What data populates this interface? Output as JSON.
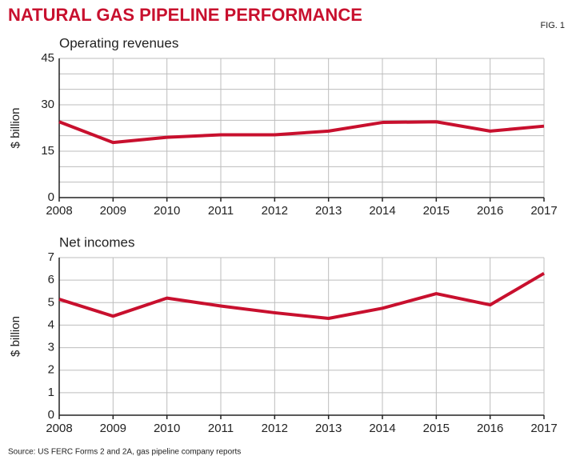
{
  "title": "NATURAL GAS PIPELINE PERFORMANCE",
  "figure_label": "FIG. 1",
  "source": "Source: US FERC Forms 2 and 2A, gas pipeline company reports",
  "chart_data": [
    {
      "type": "line",
      "title": "Operating revenues",
      "y_label": "$ billion",
      "x": [
        2008,
        2009,
        2010,
        2011,
        2012,
        2013,
        2014,
        2015,
        2016,
        2017
      ],
      "values": [
        24.5,
        17.8,
        19.5,
        20.3,
        20.3,
        21.5,
        24.3,
        24.5,
        21.5,
        23.1
      ],
      "color": "#c8102e",
      "xlim": [
        2008,
        2017
      ],
      "xticks": [
        2008,
        2009,
        2010,
        2011,
        2012,
        2013,
        2014,
        2015,
        2016,
        2017
      ],
      "ylim": [
        0,
        45
      ],
      "yticks": [
        0,
        15,
        30,
        45
      ],
      "minor_yticks": [
        5,
        10,
        20,
        25,
        35,
        40
      ],
      "grid": true
    },
    {
      "type": "line",
      "title": "Net incomes",
      "y_label": "$ billion",
      "x": [
        2008,
        2009,
        2010,
        2011,
        2012,
        2013,
        2014,
        2015,
        2016,
        2017
      ],
      "values": [
        5.15,
        4.4,
        5.2,
        4.85,
        4.55,
        4.3,
        4.75,
        5.4,
        4.9,
        6.3
      ],
      "color": "#c8102e",
      "xlim": [
        2008,
        2017
      ],
      "xticks": [
        2008,
        2009,
        2010,
        2011,
        2012,
        2013,
        2014,
        2015,
        2016,
        2017
      ],
      "ylim": [
        0,
        7
      ],
      "yticks": [
        0,
        1,
        2,
        3,
        4,
        5,
        6,
        7
      ],
      "grid": true
    }
  ]
}
